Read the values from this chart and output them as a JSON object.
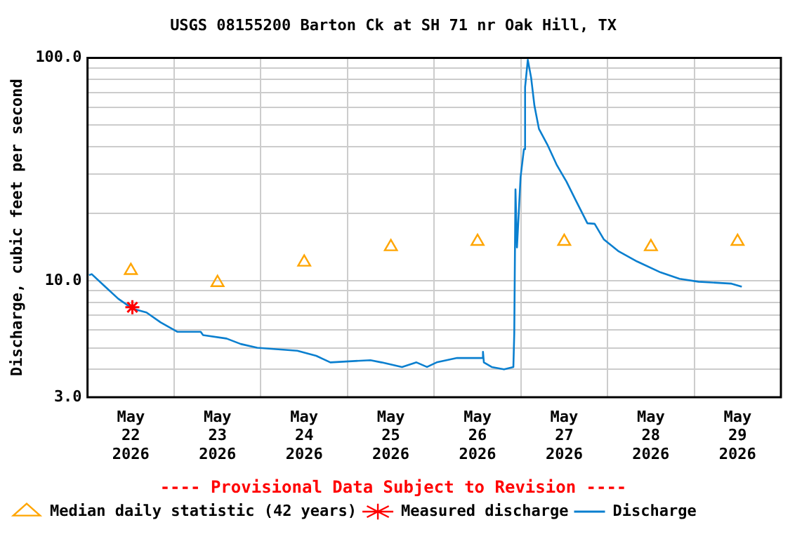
{
  "chart_data": {
    "type": "line",
    "title": "USGS 08155200 Barton Ck at SH 71 nr Oak Hill, TX",
    "ylabel": "Discharge, cubic feet per second",
    "annotations": [
      "---- Provisional Data Subject to Revision ----"
    ],
    "log": "y",
    "ylim": [
      3,
      100
    ],
    "yticks": [
      {
        "value": 3,
        "label": "3.0"
      },
      {
        "value": 4,
        "label": null
      },
      {
        "value": 5,
        "label": null
      },
      {
        "value": 6,
        "label": null
      },
      {
        "value": 7,
        "label": null
      },
      {
        "value": 8,
        "label": null
      },
      {
        "value": 9,
        "label": null
      },
      {
        "value": 10,
        "label": "10.0"
      },
      {
        "value": 20,
        "label": null
      },
      {
        "value": 30,
        "label": null
      },
      {
        "value": 40,
        "label": null
      },
      {
        "value": 50,
        "label": null
      },
      {
        "value": 60,
        "label": null
      },
      {
        "value": 70,
        "label": null
      },
      {
        "value": 80,
        "label": null
      },
      {
        "value": 90,
        "label": null
      },
      {
        "value": 100,
        "label": "100.0"
      }
    ],
    "xlim": [
      "2026-05-22T00:00",
      "2026-05-30T00:00"
    ],
    "xticks": [
      {
        "value": "2026-05-22T00:00",
        "label": null
      },
      {
        "value": "2026-05-22T12:00",
        "label": "May 22 2026"
      },
      {
        "value": "2026-05-23T00:00",
        "label": null
      },
      {
        "value": "2026-05-23T12:00",
        "label": "May 23 2026"
      },
      {
        "value": "2026-05-24T00:00",
        "label": null
      },
      {
        "value": "2026-05-24T12:00",
        "label": "May 24 2026"
      },
      {
        "value": "2026-05-25T00:00",
        "label": null
      },
      {
        "value": "2026-05-25T12:00",
        "label": "May 25 2026"
      },
      {
        "value": "2026-05-26T00:00",
        "label": null
      },
      {
        "value": "2026-05-26T12:00",
        "label": "May 26 2026"
      },
      {
        "value": "2026-05-27T00:00",
        "label": null
      },
      {
        "value": "2026-05-27T12:00",
        "label": "May 27 2026"
      },
      {
        "value": "2026-05-28T00:00",
        "label": null
      },
      {
        "value": "2026-05-28T12:00",
        "label": "May 28 2026"
      },
      {
        "value": "2026-05-29T00:00",
        "label": null
      },
      {
        "value": "2026-05-29T12:00",
        "label": "May 29 2026"
      },
      {
        "value": "2026-05-30T00:00",
        "label": null
      }
    ],
    "grid": true,
    "legend": "bottom",
    "series": [
      {
        "name": "Median daily statistic (42 years)",
        "type": "scatter",
        "marker": "triangle",
        "color": "#ffa500",
        "x": [
          "2026-05-22T12:00",
          "2026-05-23T12:00",
          "2026-05-24T12:00",
          "2026-05-25T12:00",
          "2026-05-26T12:00",
          "2026-05-27T12:00",
          "2026-05-28T12:00",
          "2026-05-29T12:00"
        ],
        "values": [
          11.1,
          9.8,
          12.1,
          14.2,
          15.0,
          15.0,
          14.2,
          15.0
        ]
      },
      {
        "name": "Measured discharge",
        "type": "scatter",
        "marker": "cross",
        "color": "#ff0000",
        "x": [
          "2026-05-22T12:25"
        ],
        "values": [
          7.6
        ]
      },
      {
        "name": "Discharge",
        "marker": "none",
        "line_style": "solid",
        "color": "#0a7fcf",
        "x": [
          "2026-05-22T00:25",
          "2026-05-22T01:10",
          "2026-05-22T04:35",
          "2026-05-22T08:30",
          "2026-05-22T12:25",
          "2026-05-22T16:20",
          "2026-05-22T20:15",
          "2026-05-23T00:50",
          "2026-05-23T07:20",
          "2026-05-23T08:00",
          "2026-05-23T14:30",
          "2026-05-23T18:25",
          "2026-05-23T23:00",
          "2026-05-24T10:05",
          "2026-05-24T15:20",
          "2026-05-24T19:15",
          "2026-05-25T06:20",
          "2026-05-25T09:25",
          "2026-05-25T15:05",
          "2026-05-25T19:05",
          "2026-05-25T22:00",
          "2026-05-26T00:40",
          "2026-05-26T06:20",
          "2026-05-26T13:20",
          "2026-05-26T13:30",
          "2026-05-26T13:45",
          "2026-05-26T15:55",
          "2026-05-26T19:20",
          "2026-05-26T21:55",
          "2026-05-26T22:10",
          "2026-05-26T22:30",
          "2026-05-26T22:55",
          "2026-05-26T23:55",
          "2026-05-27T00:50",
          "2026-05-27T01:10",
          "2026-05-27T01:55",
          "2026-05-27T02:50",
          "2026-05-27T03:45",
          "2026-05-27T05:00",
          "2026-05-27T07:20",
          "2026-05-27T10:00",
          "2026-05-27T12:35",
          "2026-05-27T15:10",
          "2026-05-27T18:25",
          "2026-05-27T20:25",
          "2026-05-27T23:00",
          "2026-05-28T02:55",
          "2026-05-28T08:10",
          "2026-05-28T14:40",
          "2026-05-28T19:55",
          "2026-05-29T01:10",
          "2026-05-29T10:20",
          "2026-05-29T13:10"
        ],
        "values": [
          10.6,
          10.7,
          9.5,
          8.3,
          7.5,
          7.2,
          6.5,
          5.9,
          5.9,
          5.7,
          5.5,
          5.2,
          5.0,
          4.85,
          4.6,
          4.3,
          4.4,
          4.3,
          4.1,
          4.3,
          4.1,
          4.3,
          4.5,
          4.5,
          4.8,
          4.3,
          4.1,
          4.0,
          4.1,
          5.8,
          25.7,
          14.1,
          29.2,
          38.9,
          74,
          98,
          81.5,
          61,
          48,
          40.8,
          32.9,
          27.9,
          23,
          18.1,
          18.0,
          15.3,
          13.6,
          12.2,
          10.9,
          10.2,
          9.9,
          9.7,
          9.4
        ]
      }
    ]
  }
}
